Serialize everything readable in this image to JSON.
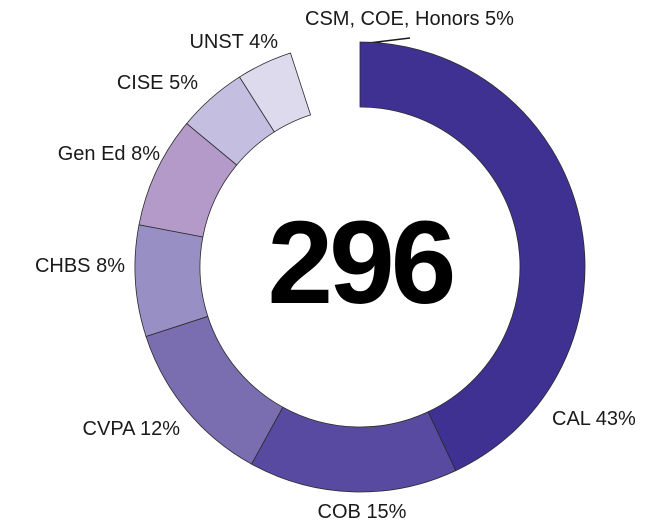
{
  "chart_data": {
    "type": "donut",
    "annotation": "296",
    "categories": [
      "CAL",
      "COB",
      "CVPA",
      "CHBS",
      "Gen Ed",
      "CISE",
      "UNST",
      "CSM, COE, Honors"
    ],
    "values": [
      43,
      15,
      12,
      8,
      8,
      5,
      4,
      5
    ],
    "value_labels": [
      "43%",
      "15%",
      "12%",
      "8%",
      "8%",
      "5%",
      "4%",
      "5%"
    ],
    "colors": [
      "#3f3192",
      "#574aa0",
      "#7a6db0",
      "#9890c4",
      "#b39ac8",
      "#c4bfe0",
      "#dedaee",
      "#ffffff"
    ]
  }
}
